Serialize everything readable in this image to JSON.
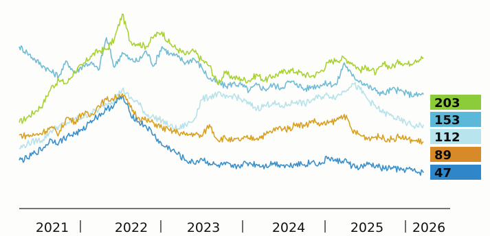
{
  "chart_data": {
    "type": "line",
    "title": "",
    "xlabel": "",
    "ylabel": "",
    "x_ticks": [
      "2021",
      "2022",
      "2023",
      "2024",
      "2025",
      "2026"
    ],
    "x_range": [
      2021.0,
      2026.15
    ],
    "y_range": [
      30,
      270
    ],
    "grid": false,
    "legend": "none",
    "series": [
      {
        "end_value": "203",
        "color": "#a8d232",
        "label_color": "#8ccc3a",
        "values": [
          [
            2021.0,
            115
          ],
          [
            2021.1,
            122
          ],
          [
            2021.2,
            130
          ],
          [
            2021.3,
            140
          ],
          [
            2021.4,
            162
          ],
          [
            2021.5,
            172
          ],
          [
            2021.6,
            168
          ],
          [
            2021.7,
            185
          ],
          [
            2021.8,
            192
          ],
          [
            2021.9,
            205
          ],
          [
            2022.0,
            212
          ],
          [
            2022.1,
            214
          ],
          [
            2022.2,
            228
          ],
          [
            2022.3,
            262
          ],
          [
            2022.4,
            225
          ],
          [
            2022.5,
            222
          ],
          [
            2022.6,
            218
          ],
          [
            2022.7,
            232
          ],
          [
            2022.8,
            238
          ],
          [
            2022.9,
            222
          ],
          [
            2023.0,
            214
          ],
          [
            2023.1,
            207
          ],
          [
            2023.2,
            212
          ],
          [
            2023.3,
            200
          ],
          [
            2023.4,
            192
          ],
          [
            2023.5,
            168
          ],
          [
            2023.6,
            182
          ],
          [
            2023.7,
            176
          ],
          [
            2023.8,
            174
          ],
          [
            2023.9,
            172
          ],
          [
            2024.0,
            180
          ],
          [
            2024.1,
            172
          ],
          [
            2024.2,
            178
          ],
          [
            2024.3,
            182
          ],
          [
            2024.4,
            186
          ],
          [
            2024.5,
            184
          ],
          [
            2024.6,
            180
          ],
          [
            2024.7,
            178
          ],
          [
            2024.8,
            184
          ],
          [
            2024.9,
            196
          ],
          [
            2025.0,
            200
          ],
          [
            2025.1,
            202
          ],
          [
            2025.2,
            196
          ],
          [
            2025.3,
            186
          ],
          [
            2025.4,
            190
          ],
          [
            2025.5,
            182
          ],
          [
            2025.6,
            194
          ],
          [
            2025.7,
            190
          ],
          [
            2025.8,
            198
          ],
          [
            2025.9,
            194
          ],
          [
            2026.0,
            200
          ],
          [
            2026.1,
            203
          ]
        ]
      },
      {
        "end_value": "153",
        "color": "#6fbcd4",
        "label_color": "#5bb8d8",
        "values": [
          [
            2021.0,
            218
          ],
          [
            2021.1,
            210
          ],
          [
            2021.2,
            200
          ],
          [
            2021.3,
            192
          ],
          [
            2021.4,
            184
          ],
          [
            2021.5,
            178
          ],
          [
            2021.6,
            198
          ],
          [
            2021.7,
            182
          ],
          [
            2021.8,
            192
          ],
          [
            2021.9,
            196
          ],
          [
            2022.0,
            186
          ],
          [
            2022.1,
            230
          ],
          [
            2022.2,
            190
          ],
          [
            2022.3,
            210
          ],
          [
            2022.4,
            200
          ],
          [
            2022.5,
            198
          ],
          [
            2022.6,
            212
          ],
          [
            2022.7,
            192
          ],
          [
            2022.8,
            218
          ],
          [
            2022.9,
            208
          ],
          [
            2023.0,
            204
          ],
          [
            2023.1,
            196
          ],
          [
            2023.2,
            202
          ],
          [
            2023.3,
            190
          ],
          [
            2023.4,
            174
          ],
          [
            2023.5,
            170
          ],
          [
            2023.6,
            164
          ],
          [
            2023.7,
            168
          ],
          [
            2023.8,
            166
          ],
          [
            2023.9,
            158
          ],
          [
            2024.0,
            166
          ],
          [
            2024.1,
            160
          ],
          [
            2024.2,
            166
          ],
          [
            2024.3,
            162
          ],
          [
            2024.4,
            170
          ],
          [
            2024.5,
            168
          ],
          [
            2024.6,
            160
          ],
          [
            2024.7,
            164
          ],
          [
            2024.8,
            166
          ],
          [
            2024.9,
            168
          ],
          [
            2025.0,
            166
          ],
          [
            2025.1,
            196
          ],
          [
            2025.2,
            178
          ],
          [
            2025.3,
            172
          ],
          [
            2025.4,
            164
          ],
          [
            2025.5,
            158
          ],
          [
            2025.6,
            154
          ],
          [
            2025.7,
            160
          ],
          [
            2025.8,
            158
          ],
          [
            2025.9,
            154
          ],
          [
            2026.0,
            152
          ],
          [
            2026.1,
            153
          ]
        ]
      },
      {
        "end_value": "112",
        "color": "#b7e2ea",
        "label_color": "#b8e4ee",
        "values": [
          [
            2021.0,
            80
          ],
          [
            2021.1,
            86
          ],
          [
            2021.2,
            90
          ],
          [
            2021.3,
            92
          ],
          [
            2021.4,
            104
          ],
          [
            2021.5,
            110
          ],
          [
            2021.6,
            114
          ],
          [
            2021.7,
            120
          ],
          [
            2021.8,
            122
          ],
          [
            2021.9,
            128
          ],
          [
            2022.0,
            132
          ],
          [
            2022.1,
            140
          ],
          [
            2022.2,
            146
          ],
          [
            2022.3,
            160
          ],
          [
            2022.4,
            148
          ],
          [
            2022.5,
            142
          ],
          [
            2022.6,
            126
          ],
          [
            2022.7,
            122
          ],
          [
            2022.8,
            118
          ],
          [
            2022.9,
            110
          ],
          [
            2023.0,
            106
          ],
          [
            2023.1,
            112
          ],
          [
            2023.2,
            118
          ],
          [
            2023.3,
            146
          ],
          [
            2023.4,
            150
          ],
          [
            2023.5,
            154
          ],
          [
            2023.6,
            148
          ],
          [
            2023.7,
            152
          ],
          [
            2023.8,
            146
          ],
          [
            2023.9,
            140
          ],
          [
            2024.0,
            134
          ],
          [
            2024.1,
            138
          ],
          [
            2024.2,
            142
          ],
          [
            2024.3,
            136
          ],
          [
            2024.4,
            140
          ],
          [
            2024.5,
            144
          ],
          [
            2024.6,
            140
          ],
          [
            2024.7,
            146
          ],
          [
            2024.8,
            150
          ],
          [
            2024.9,
            152
          ],
          [
            2025.0,
            150
          ],
          [
            2025.1,
            158
          ],
          [
            2025.2,
            168
          ],
          [
            2025.3,
            160
          ],
          [
            2025.4,
            146
          ],
          [
            2025.5,
            136
          ],
          [
            2025.6,
            128
          ],
          [
            2025.7,
            124
          ],
          [
            2025.8,
            118
          ],
          [
            2025.9,
            114
          ],
          [
            2026.0,
            110
          ],
          [
            2026.1,
            112
          ]
        ]
      },
      {
        "end_value": "89",
        "color": "#d9a020",
        "label_color": "#d88a28",
        "values": [
          [
            2021.0,
            98
          ],
          [
            2021.1,
            97
          ],
          [
            2021.2,
            98
          ],
          [
            2021.3,
            102
          ],
          [
            2021.4,
            108
          ],
          [
            2021.5,
            100
          ],
          [
            2021.6,
            122
          ],
          [
            2021.7,
            116
          ],
          [
            2021.8,
            128
          ],
          [
            2021.9,
            124
          ],
          [
            2022.0,
            138
          ],
          [
            2022.1,
            146
          ],
          [
            2022.2,
            148
          ],
          [
            2022.3,
            154
          ],
          [
            2022.4,
            136
          ],
          [
            2022.5,
            122
          ],
          [
            2022.6,
            118
          ],
          [
            2022.7,
            114
          ],
          [
            2022.8,
            108
          ],
          [
            2022.9,
            104
          ],
          [
            2023.0,
            102
          ],
          [
            2023.1,
            98
          ],
          [
            2023.2,
            100
          ],
          [
            2023.3,
            96
          ],
          [
            2023.4,
            112
          ],
          [
            2023.5,
            92
          ],
          [
            2023.6,
            94
          ],
          [
            2023.7,
            90
          ],
          [
            2023.8,
            92
          ],
          [
            2023.9,
            94
          ],
          [
            2024.0,
            94
          ],
          [
            2024.1,
            98
          ],
          [
            2024.2,
            104
          ],
          [
            2024.3,
            108
          ],
          [
            2024.4,
            106
          ],
          [
            2024.5,
            114
          ],
          [
            2024.6,
            110
          ],
          [
            2024.7,
            118
          ],
          [
            2024.8,
            112
          ],
          [
            2024.9,
            114
          ],
          [
            2025.0,
            118
          ],
          [
            2025.1,
            126
          ],
          [
            2025.2,
            104
          ],
          [
            2025.3,
            98
          ],
          [
            2025.4,
            94
          ],
          [
            2025.5,
            96
          ],
          [
            2025.6,
            94
          ],
          [
            2025.7,
            92
          ],
          [
            2025.8,
            96
          ],
          [
            2025.9,
            92
          ],
          [
            2026.0,
            90
          ],
          [
            2026.1,
            89
          ]
        ]
      },
      {
        "end_value": "47",
        "color": "#3a8fc8",
        "label_color": "#2f86c8",
        "values": [
          [
            2021.0,
            64
          ],
          [
            2021.1,
            66
          ],
          [
            2021.2,
            74
          ],
          [
            2021.3,
            80
          ],
          [
            2021.4,
            92
          ],
          [
            2021.5,
            88
          ],
          [
            2021.6,
            96
          ],
          [
            2021.7,
            100
          ],
          [
            2021.8,
            104
          ],
          [
            2021.9,
            118
          ],
          [
            2022.0,
            124
          ],
          [
            2022.1,
            132
          ],
          [
            2022.2,
            140
          ],
          [
            2022.3,
            150
          ],
          [
            2022.4,
            128
          ],
          [
            2022.5,
            116
          ],
          [
            2022.6,
            110
          ],
          [
            2022.7,
            98
          ],
          [
            2022.8,
            84
          ],
          [
            2022.9,
            80
          ],
          [
            2023.0,
            72
          ],
          [
            2023.1,
            64
          ],
          [
            2023.2,
            60
          ],
          [
            2023.3,
            66
          ],
          [
            2023.4,
            60
          ],
          [
            2023.5,
            56
          ],
          [
            2023.6,
            58
          ],
          [
            2023.7,
            54
          ],
          [
            2023.8,
            58
          ],
          [
            2023.9,
            60
          ],
          [
            2024.0,
            58
          ],
          [
            2024.1,
            56
          ],
          [
            2024.2,
            60
          ],
          [
            2024.3,
            58
          ],
          [
            2024.4,
            56
          ],
          [
            2024.5,
            60
          ],
          [
            2024.6,
            58
          ],
          [
            2024.7,
            62
          ],
          [
            2024.8,
            58
          ],
          [
            2024.9,
            68
          ],
          [
            2025.0,
            62
          ],
          [
            2025.1,
            64
          ],
          [
            2025.2,
            56
          ],
          [
            2025.3,
            54
          ],
          [
            2025.4,
            58
          ],
          [
            2025.5,
            56
          ],
          [
            2025.6,
            52
          ],
          [
            2025.7,
            54
          ],
          [
            2025.8,
            50
          ],
          [
            2025.9,
            52
          ],
          [
            2026.0,
            48
          ],
          [
            2026.1,
            47
          ]
        ]
      }
    ]
  }
}
